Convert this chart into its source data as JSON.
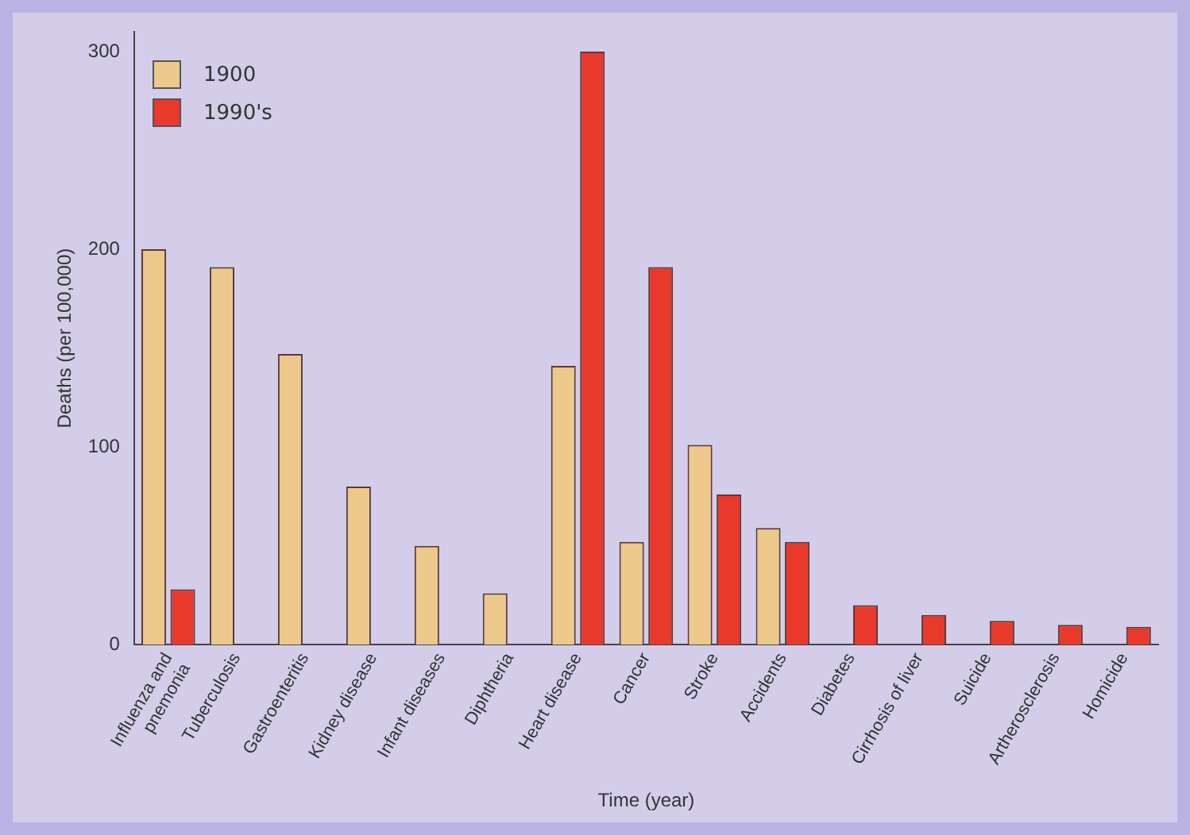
{
  "chart_data": {
    "type": "bar",
    "xlabel": "Time (year)",
    "ylabel": "Deaths (per 100,000)",
    "categories": [
      "Influenza and\npnemonia",
      "Tuberculosis",
      "Gastroenteritis",
      "Kidney disease",
      "Infant diseases",
      "Diphtheria",
      "Heart disease",
      "Cancer",
      "Stroke",
      "Accidents",
      "Diabetes",
      "Cirrhosis of liver",
      "Suicide",
      "Artherosclerosis",
      "Homicide"
    ],
    "series": [
      {
        "name": "1900",
        "color": "#ecc98a",
        "values": [
          200,
          191,
          147,
          80,
          50,
          26,
          141,
          52,
          101,
          59,
          null,
          null,
          null,
          null,
          null
        ]
      },
      {
        "name": "1990's",
        "color": "#e8392a",
        "values": [
          28,
          null,
          null,
          null,
          null,
          null,
          300,
          191,
          76,
          52,
          20,
          15,
          12,
          10,
          9
        ]
      }
    ],
    "ylim": [
      0,
      310
    ],
    "yticks": [
      0,
      100,
      200,
      300
    ],
    "grid": false,
    "legend": "top left"
  }
}
